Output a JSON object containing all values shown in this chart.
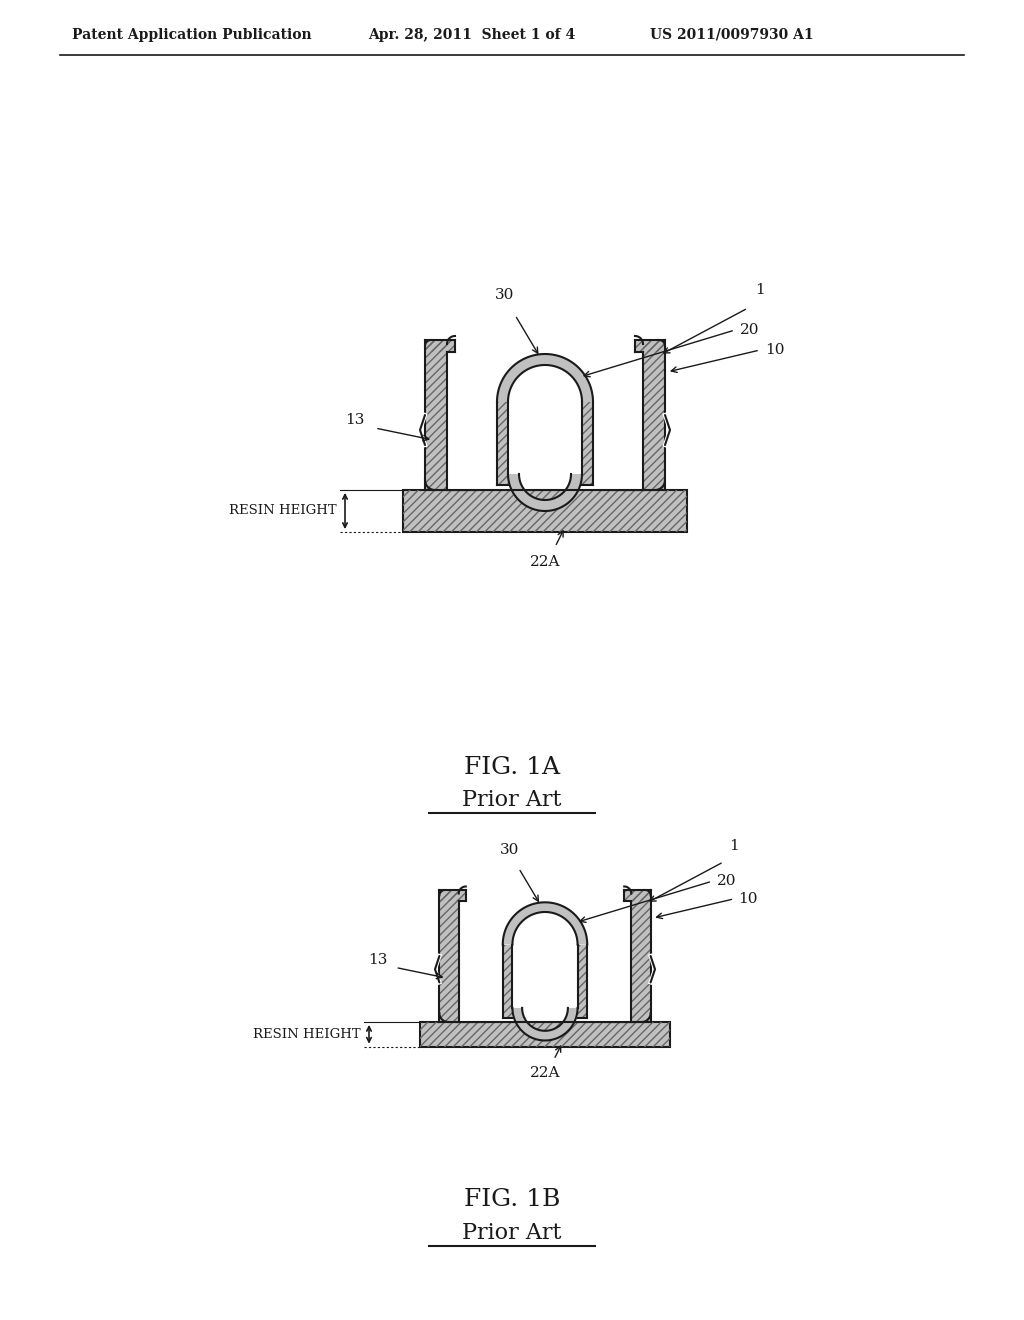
{
  "header_left": "Patent Application Publication",
  "header_center": "Apr. 28, 2011  Sheet 1 of 4",
  "header_right": "US 2011/0097930 A1",
  "fig1a_caption": "FIG. 1A",
  "fig1a_sub": "Prior Art",
  "fig1b_caption": "FIG. 1B",
  "fig1b_sub": "Prior Art",
  "bg_color": "#ffffff",
  "line_color": "#1a1a1a",
  "gray_fill": "#c0c0c0",
  "hatch_ec": "#666666"
}
